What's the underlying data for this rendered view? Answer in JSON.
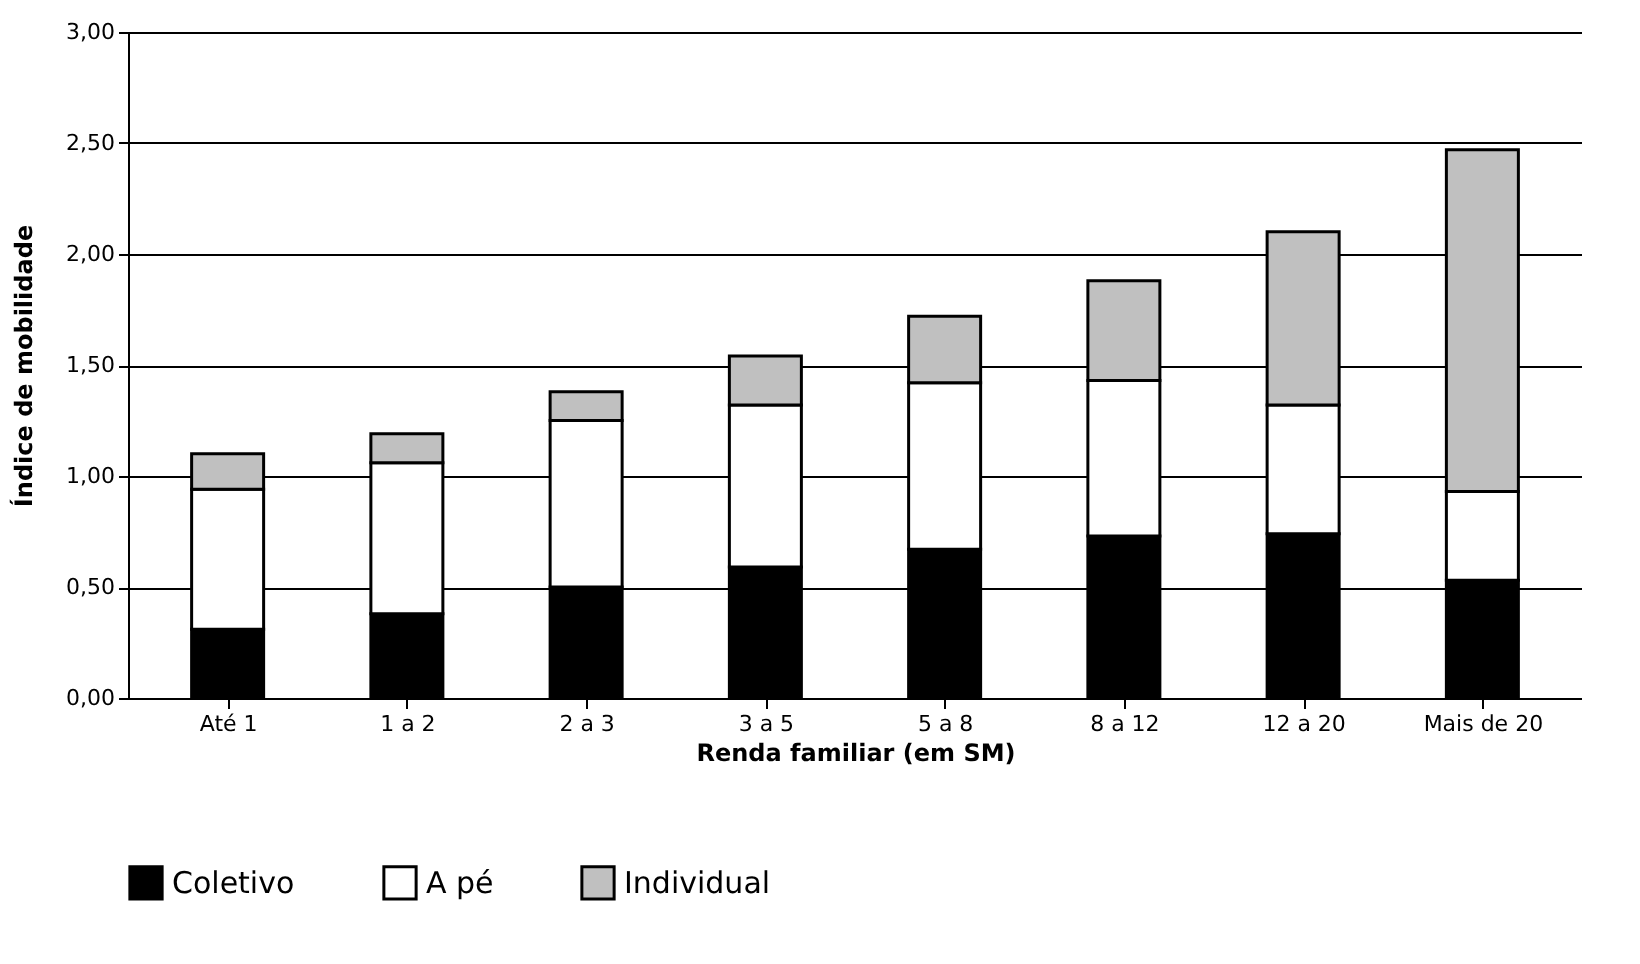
{
  "chart_data": {
    "type": "bar",
    "stacked": true,
    "xlabel": "Renda familiar (em SM)",
    "ylabel": "Índice de mobilidade",
    "categories": [
      "Até 1",
      "1 a 2",
      "2 a 3",
      "3 a 5",
      "5 a 8",
      "8 a 12",
      "12 a 20",
      "Mais de 20"
    ],
    "series": [
      {
        "name": "Coletivo",
        "color": "#000000",
        "values": [
          0.31,
          0.38,
          0.5,
          0.59,
          0.67,
          0.73,
          0.74,
          0.53
        ]
      },
      {
        "name": "A pé",
        "color": "#ffffff",
        "values": [
          0.63,
          0.68,
          0.75,
          0.73,
          0.75,
          0.7,
          0.58,
          0.4
        ]
      },
      {
        "name": "Individual",
        "color": "#c0c0c0",
        "values": [
          0.16,
          0.13,
          0.13,
          0.22,
          0.3,
          0.45,
          0.78,
          1.54
        ]
      }
    ],
    "ylim": [
      0,
      3
    ],
    "yticks": [
      {
        "value": 0,
        "label": "0,00"
      },
      {
        "value": 0.5,
        "label": "0,50"
      },
      {
        "value": 1,
        "label": "1,00"
      },
      {
        "value": 1.5,
        "label": "1,50"
      },
      {
        "value": 2,
        "label": "2,00"
      },
      {
        "value": 2.5,
        "label": "2,50"
      },
      {
        "value": 3,
        "label": "3,00"
      }
    ],
    "grid": "y",
    "legend": "bottom"
  }
}
